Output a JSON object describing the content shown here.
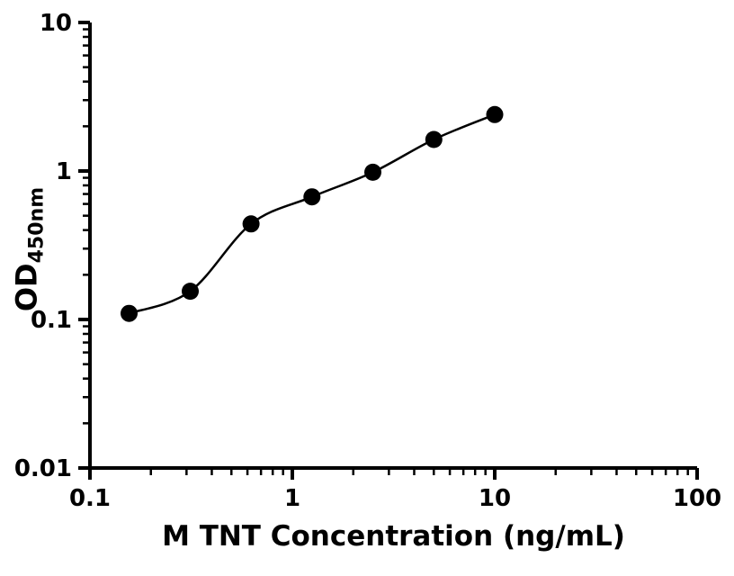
{
  "page": {
    "background": "#ffffff"
  },
  "chart_data": {
    "type": "scatter",
    "title": "",
    "xlabel": "M TNT Concentration (ng/mL)",
    "ylabel_base": "OD",
    "ylabel_sub": "450nm",
    "xscale": "log",
    "yscale": "log",
    "xlim": [
      0.1,
      100
    ],
    "ylim": [
      0.01,
      10
    ],
    "x_ticks": [
      0.1,
      1,
      10,
      100
    ],
    "x_tick_labels": [
      "0.1",
      "1",
      "10",
      "100"
    ],
    "y_ticks": [
      0.01,
      0.1,
      1,
      10
    ],
    "y_tick_labels": [
      "0.01",
      "0.1",
      "1",
      "10"
    ],
    "minor_log_ticks": true,
    "grid": false,
    "legend": "none",
    "series": [
      {
        "x": [
          0.156,
          0.313,
          0.625,
          1.25,
          2.5,
          5,
          10
        ],
        "y": [
          0.11,
          0.155,
          0.44,
          0.67,
          0.98,
          1.63,
          2.4
        ],
        "marker": "circle",
        "marker_color": "#000000",
        "fit_curve": true,
        "line_color": "#000000"
      }
    ],
    "axis_color": "#000000",
    "text_color": "#000000"
  }
}
